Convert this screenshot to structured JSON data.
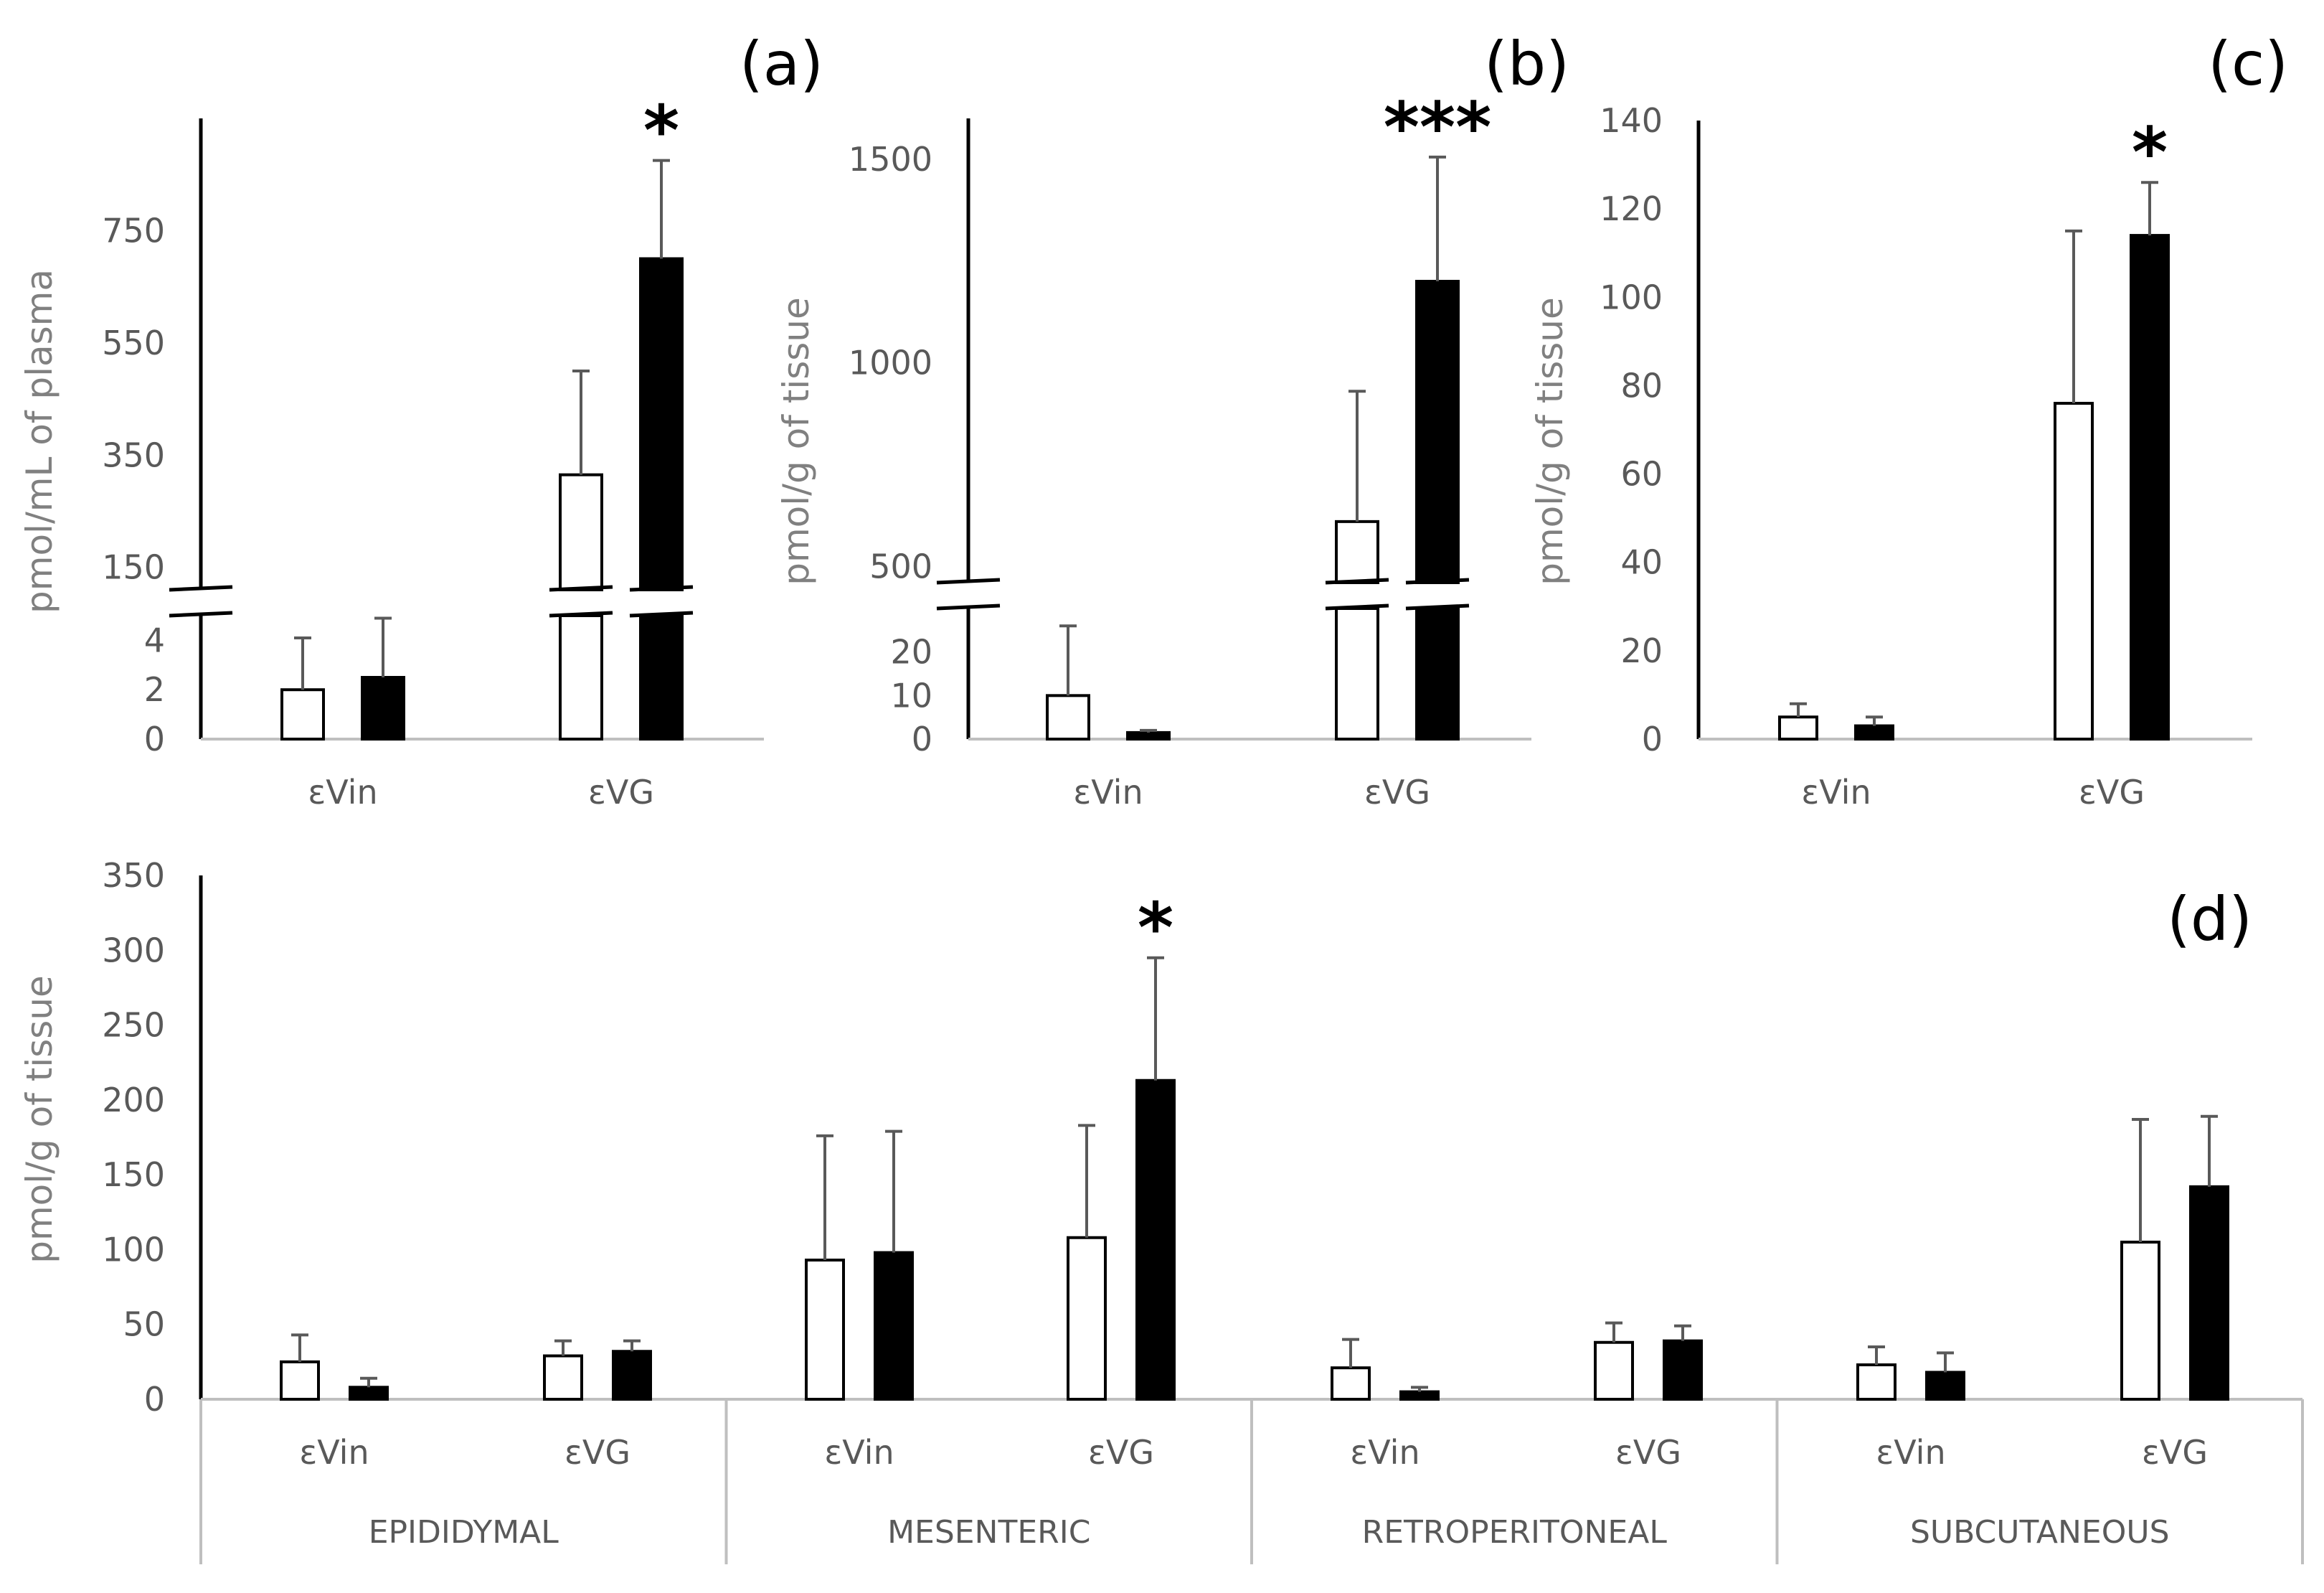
{
  "colors": {
    "control": "#ffffff",
    "treated": "#000000",
    "axis": "#000000",
    "axis_grey": "#bfbfbf",
    "text": "#595959"
  },
  "chart_data": [
    {
      "id": "a",
      "type": "bar",
      "panel_label": "(a)",
      "ylabel": "pmol/mL of plasma",
      "categories": [
        "εVin",
        "εVG"
      ],
      "series": [
        {
          "name": "open",
          "values": [
            2.0,
            315
          ],
          "errors": [
            2.1,
            185
          ]
        },
        {
          "name": "filled",
          "values": [
            2.5,
            700
          ],
          "errors": [
            2.4,
            175
          ]
        }
      ],
      "lower_range": [
        0,
        5
      ],
      "lower_ticks": [
        "0",
        "2",
        "4"
      ],
      "lower_tick_values": [
        0,
        2,
        4
      ],
      "upper_range": [
        110,
        950
      ],
      "upper_ticks": [
        "150",
        "350",
        "550",
        "750"
      ],
      "upper_tick_values": [
        150,
        350,
        550,
        750
      ],
      "significance": [
        {
          "category": 1,
          "series": 1,
          "mark": "*"
        }
      ]
    },
    {
      "id": "b",
      "type": "bar",
      "panel_label": "(b)",
      "ylabel": "pmol/g of tissue",
      "categories": [
        "εVin",
        "εVG"
      ],
      "series": [
        {
          "name": "open",
          "values": [
            10,
            610
          ],
          "errors": [
            16,
            320
          ]
        },
        {
          "name": "filled",
          "values": [
            1.5,
            1200
          ],
          "errors": [
            0.5,
            305
          ]
        }
      ],
      "lower_range": [
        0,
        30
      ],
      "lower_ticks": [
        "0",
        "10",
        "20"
      ],
      "lower_tick_values": [
        0,
        10,
        20
      ],
      "upper_range": [
        460,
        1600
      ],
      "upper_ticks": [
        "500",
        "1000",
        "1500"
      ],
      "upper_tick_values": [
        500,
        1000,
        1500
      ],
      "significance": [
        {
          "category": 1,
          "series": 1,
          "mark": "***"
        }
      ]
    },
    {
      "id": "c",
      "type": "bar",
      "panel_label": "(c)",
      "ylabel": "pmol/g of tissue",
      "categories": [
        "εVin",
        "εVG"
      ],
      "series": [
        {
          "name": "open",
          "values": [
            5,
            76
          ],
          "errors": [
            3,
            39
          ]
        },
        {
          "name": "filled",
          "values": [
            3,
            114
          ],
          "errors": [
            2,
            12
          ]
        }
      ],
      "ylim": [
        0,
        140
      ],
      "ticks": [
        "0",
        "20",
        "40",
        "60",
        "80",
        "100",
        "120",
        "140"
      ],
      "tick_values": [
        0,
        20,
        40,
        60,
        80,
        100,
        120,
        140
      ],
      "significance": [
        {
          "category": 1,
          "series": 1,
          "mark": "*"
        }
      ]
    },
    {
      "id": "d",
      "type": "bar",
      "panel_label": "(d)",
      "ylabel": "pmol/g of tissue",
      "groups": [
        "EPIDIDYMAL",
        "MESENTERIC",
        "RETROPERITONEAL",
        "SUBCUTANEOUS"
      ],
      "categories": [
        "εVin",
        "εVG",
        "εVin",
        "εVG",
        "εVin",
        "εVG",
        "εVin",
        "εVG"
      ],
      "series": [
        {
          "name": "open",
          "values": [
            25,
            29,
            93,
            108,
            21,
            38,
            23,
            105
          ],
          "errors": [
            18,
            10,
            83,
            75,
            19,
            13,
            12,
            82
          ]
        },
        {
          "name": "filled",
          "values": [
            8,
            32,
            98,
            213,
            5,
            39,
            18,
            142
          ],
          "errors": [
            6,
            7,
            81,
            82,
            3,
            10,
            13,
            47
          ]
        }
      ],
      "ylim": [
        0,
        350
      ],
      "ticks": [
        "0",
        "50",
        "100",
        "150",
        "200",
        "250",
        "300",
        "350"
      ],
      "tick_values": [
        0,
        50,
        100,
        150,
        200,
        250,
        300,
        350
      ],
      "significance": [
        {
          "category": 3,
          "series": 1,
          "mark": "*"
        }
      ]
    }
  ]
}
